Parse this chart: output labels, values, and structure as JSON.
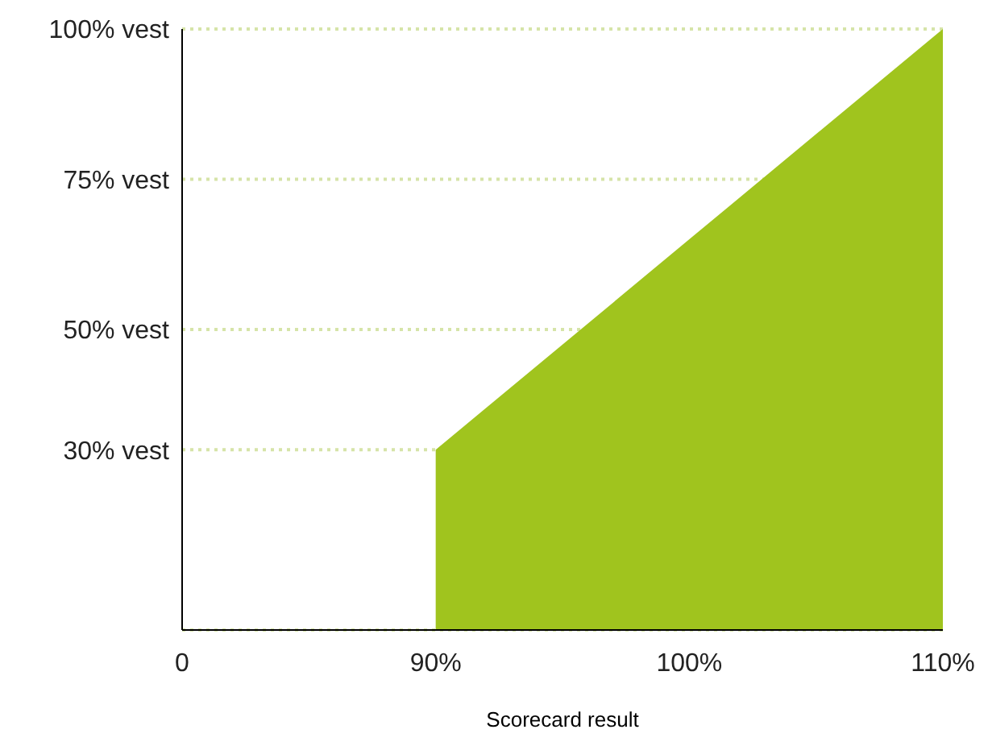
{
  "chart_data": {
    "type": "area",
    "xlabel": "Scorecard result",
    "categories": [
      "0",
      "90%",
      "100%",
      "110%"
    ],
    "series": [
      {
        "color": "#a0c41e",
        "values": [
          null,
          30,
          65,
          100
        ]
      }
    ],
    "ylim": [
      0,
      100
    ],
    "yticks": [
      {
        "value": 30,
        "label": "30% vest"
      },
      {
        "value": 50,
        "label": "50% vest"
      },
      {
        "value": 75,
        "label": "75% vest"
      },
      {
        "value": 100,
        "label": "100% vest"
      }
    ],
    "grid": "y"
  }
}
